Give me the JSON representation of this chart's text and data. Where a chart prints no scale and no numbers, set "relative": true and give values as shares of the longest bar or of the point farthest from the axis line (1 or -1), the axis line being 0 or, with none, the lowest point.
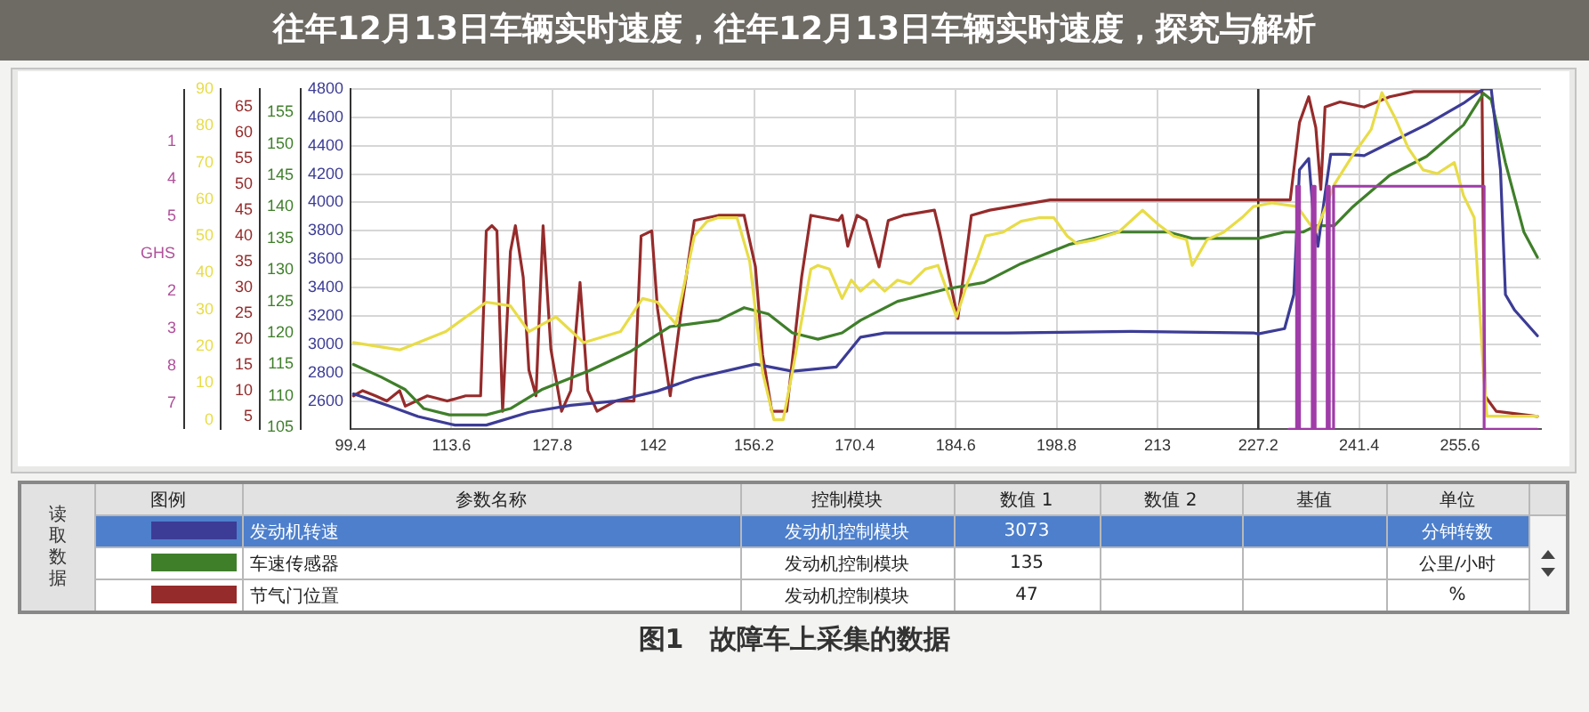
{
  "chart_data": [
    {
      "type": "line",
      "title": "往年12月13日车辆实时速度，往年12月13日车辆实时速度，探究与解析",
      "xlim": [
        99.4,
        267
      ],
      "xticks": [
        99.4,
        113.6,
        127.8,
        142,
        156.2,
        170.4,
        184.6,
        198.8,
        213,
        227.2,
        241.4,
        255.6
      ],
      "ylim": [
        2400,
        4800
      ],
      "yticks": [
        2600,
        2800,
        3000,
        3200,
        3400,
        3600,
        3800,
        4000,
        4200,
        4400,
        4600,
        4800
      ],
      "y2lim": [
        104.7,
        158.7
      ],
      "y2ticks": [
        105,
        110,
        115,
        120,
        125,
        130,
        135,
        140,
        145,
        150,
        155
      ],
      "y3lim": [
        2.5,
        68.5
      ],
      "y3ticks": [
        5,
        10,
        15,
        20,
        25,
        30,
        35,
        40,
        45,
        50,
        55,
        60,
        65
      ],
      "series": [
        {
          "name": "发动机转速",
          "color": "#3c3c96",
          "x": [
            99.8,
            104.5,
            108.9,
            114.1,
            118.5,
            124.5,
            130.4,
            136.7,
            142.6,
            147.8,
            156.4,
            161.6,
            167.8,
            171.2,
            174.6,
            191.9,
            209.3,
            226.5,
            227.2,
            230.9,
            232.2,
            233.0,
            234.3,
            235.0,
            235.6,
            236.6,
            237.4,
            239.5,
            242.1,
            245.7,
            250.9,
            256.1,
            258.9,
            260.0,
            261.3,
            262.0,
            263.3,
            266.5
          ],
          "values": [
            2650,
            2570,
            2490,
            2430,
            2430,
            2520,
            2570,
            2600,
            2670,
            2760,
            2860,
            2810,
            2840,
            3050,
            3080,
            3080,
            3090,
            3080,
            3073,
            3110,
            3350,
            4230,
            4310,
            3880,
            3690,
            4060,
            4340,
            4340,
            4330,
            4420,
            4550,
            4700,
            4800,
            4800,
            4230,
            3350,
            3240,
            3060
          ]
        },
        {
          "name": "车速传感器",
          "color": "#3f7f2a",
          "axis": "y2",
          "x": [
            99.8,
            103.7,
            107.1,
            109.7,
            113.3,
            118.5,
            121.9,
            126.3,
            133.0,
            138.7,
            144.4,
            151.2,
            154.8,
            158.2,
            161.6,
            165.2,
            168.6,
            171.2,
            176.4,
            183.4,
            188.6,
            193.8,
            200.5,
            207.5,
            214.5,
            217.9,
            226.5,
            227.2,
            230.9,
            233.5,
            235.3,
            237.9,
            240.5,
            245.7,
            250.9,
            256.1,
            258.9,
            260.0,
            262.0,
            264.6,
            266.5
          ],
          "values": [
            115,
            113,
            111,
            108,
            107,
            107,
            108,
            111,
            114,
            117,
            121,
            122,
            124,
            123,
            120,
            119,
            120,
            122,
            125,
            127,
            128,
            131,
            134,
            136,
            136,
            135,
            135,
            135,
            136,
            136,
            137,
            137,
            140,
            145,
            148,
            153,
            158,
            157,
            147,
            136,
            132
          ]
        },
        {
          "name": "节气门位置",
          "color": "#962b2b",
          "axis": "y3",
          "x": [
            99.8,
            101.1,
            102.9,
            104.5,
            106.3,
            107.1,
            110.2,
            113.0,
            115.6,
            117.7,
            118.5,
            119.3,
            120.0,
            120.8,
            121.9,
            122.6,
            123.7,
            124.5,
            125.5,
            126.5,
            127.6,
            129.1,
            130.4,
            131.7,
            132.8,
            134.1,
            136.7,
            139.3,
            140.3,
            141.8,
            142.6,
            144.4,
            146.0,
            147.8,
            151.2,
            154.8,
            156.4,
            157.4,
            158.7,
            160.8,
            162.9,
            164.2,
            168.1,
            168.6,
            169.4,
            170.7,
            172.0,
            173.8,
            175.1,
            177.2,
            181.6,
            182.3,
            184.9,
            186.8,
            189.4,
            197.9,
            209.3,
            226.5,
            227.2,
            231.7,
            233.0,
            234.3,
            235.3,
            236.0,
            236.6,
            238.7,
            242.1,
            245.7,
            249.1,
            258.7,
            259.1,
            260.7,
            266.5
          ],
          "values": [
            9,
            10,
            9,
            8,
            10,
            7,
            9,
            8,
            9,
            9,
            41,
            42,
            41,
            6,
            37,
            42,
            32,
            14,
            9,
            42,
            18,
            6,
            10,
            31,
            10,
            6,
            8,
            8,
            40,
            41,
            26,
            9,
            26,
            43,
            44,
            44,
            34,
            17,
            6,
            6,
            32,
            44,
            43,
            44,
            38,
            44,
            43,
            34,
            43,
            44,
            45,
            41,
            24,
            44,
            45,
            47,
            47,
            47,
            47,
            47,
            62,
            67,
            61,
            49,
            65,
            66,
            65,
            67,
            68,
            68,
            9,
            6,
            5
          ]
        }
      ],
      "ref_lines": [
        {
          "axis": "x",
          "value": 227.2,
          "color": "#333333"
        }
      ],
      "grid": true,
      "legend": "bottom",
      "annotations": [
        "图1　故障车上采集的数据",
        "读取数据",
        "图例",
        "参数名称",
        "控制模块",
        "数值 1",
        "数值 2",
        "基值",
        "单位",
        "发动机控制模块",
        "发动机控制模块",
        "发动机控制模块",
        "3073",
        "135",
        "47",
        "分钟转数",
        "公里/小时",
        "%",
        "1",
        "4",
        "5",
        "GHS",
        "2",
        "3",
        "8",
        "7"
      ]
    },
    {
      "type": "line",
      "xlim": [
        99.4,
        267
      ],
      "tick_labels": "y",
      "ylim": [
        -2.6,
        90
      ],
      "yticks": [
        0,
        10,
        20,
        30,
        40,
        50,
        60,
        70,
        80,
        90
      ],
      "series": [
        {
          "color": "#e8dc48",
          "x": [
            99.8,
            106.3,
            112.8,
            118.5,
            121.9,
            124.5,
            128.3,
            132.2,
            137.4,
            140.5,
            142.6,
            145.2,
            147.8,
            149.6,
            151.2,
            153.8,
            155.6,
            157.4,
            159.0,
            160.3,
            161.6,
            164.2,
            165.2,
            166.8,
            168.6,
            169.9,
            171.2,
            173.0,
            174.6,
            176.4,
            178.2,
            180.3,
            182.1,
            183.4,
            184.7,
            186.2,
            187.5,
            188.8,
            191.2,
            193.8,
            196.4,
            198.4,
            200.3,
            201.6,
            204.2,
            207.5,
            210.9,
            213.2,
            215.3,
            217.1,
            217.9,
            220.0,
            222.3,
            224.9,
            226.5,
            229.1,
            232.7,
            235.3,
            237.9,
            240.5,
            243.1,
            244.6,
            246.5,
            248.3,
            250.4,
            252.4,
            254.8,
            256.1,
            257.6,
            258.9,
            259.4,
            266.5
          ],
          "values": [
            21,
            19,
            24,
            32,
            31,
            24,
            28,
            21,
            24,
            33,
            32,
            26,
            50,
            54,
            55,
            55,
            43,
            13,
            0,
            0,
            13,
            41,
            42,
            41,
            33,
            38,
            35,
            38,
            35,
            38,
            37,
            41,
            42,
            35,
            28,
            37,
            43,
            50,
            51,
            54,
            55,
            55,
            50,
            48,
            49,
            51,
            57,
            53,
            50,
            49,
            42,
            49,
            51,
            55,
            58,
            59,
            58,
            51,
            64,
            72,
            79,
            89,
            82,
            74,
            68,
            67,
            70,
            61,
            55,
            13,
            1,
            1
          ]
        }
      ]
    },
    {
      "type": "line",
      "xlim": [
        99.4,
        267
      ],
      "relative": true,
      "tick_labels": false,
      "series": [
        {
          "type": "step",
          "color": "#a03ca8",
          "x": [
            231.5,
            232.6,
            233.0,
            234.8,
            235.2,
            236.9,
            237.2,
            237.8,
            259.0,
            266.5
          ],
          "values": [
            0,
            1,
            0,
            1,
            0,
            1,
            0,
            1,
            0,
            0
          ]
        }
      ]
    }
  ]
}
